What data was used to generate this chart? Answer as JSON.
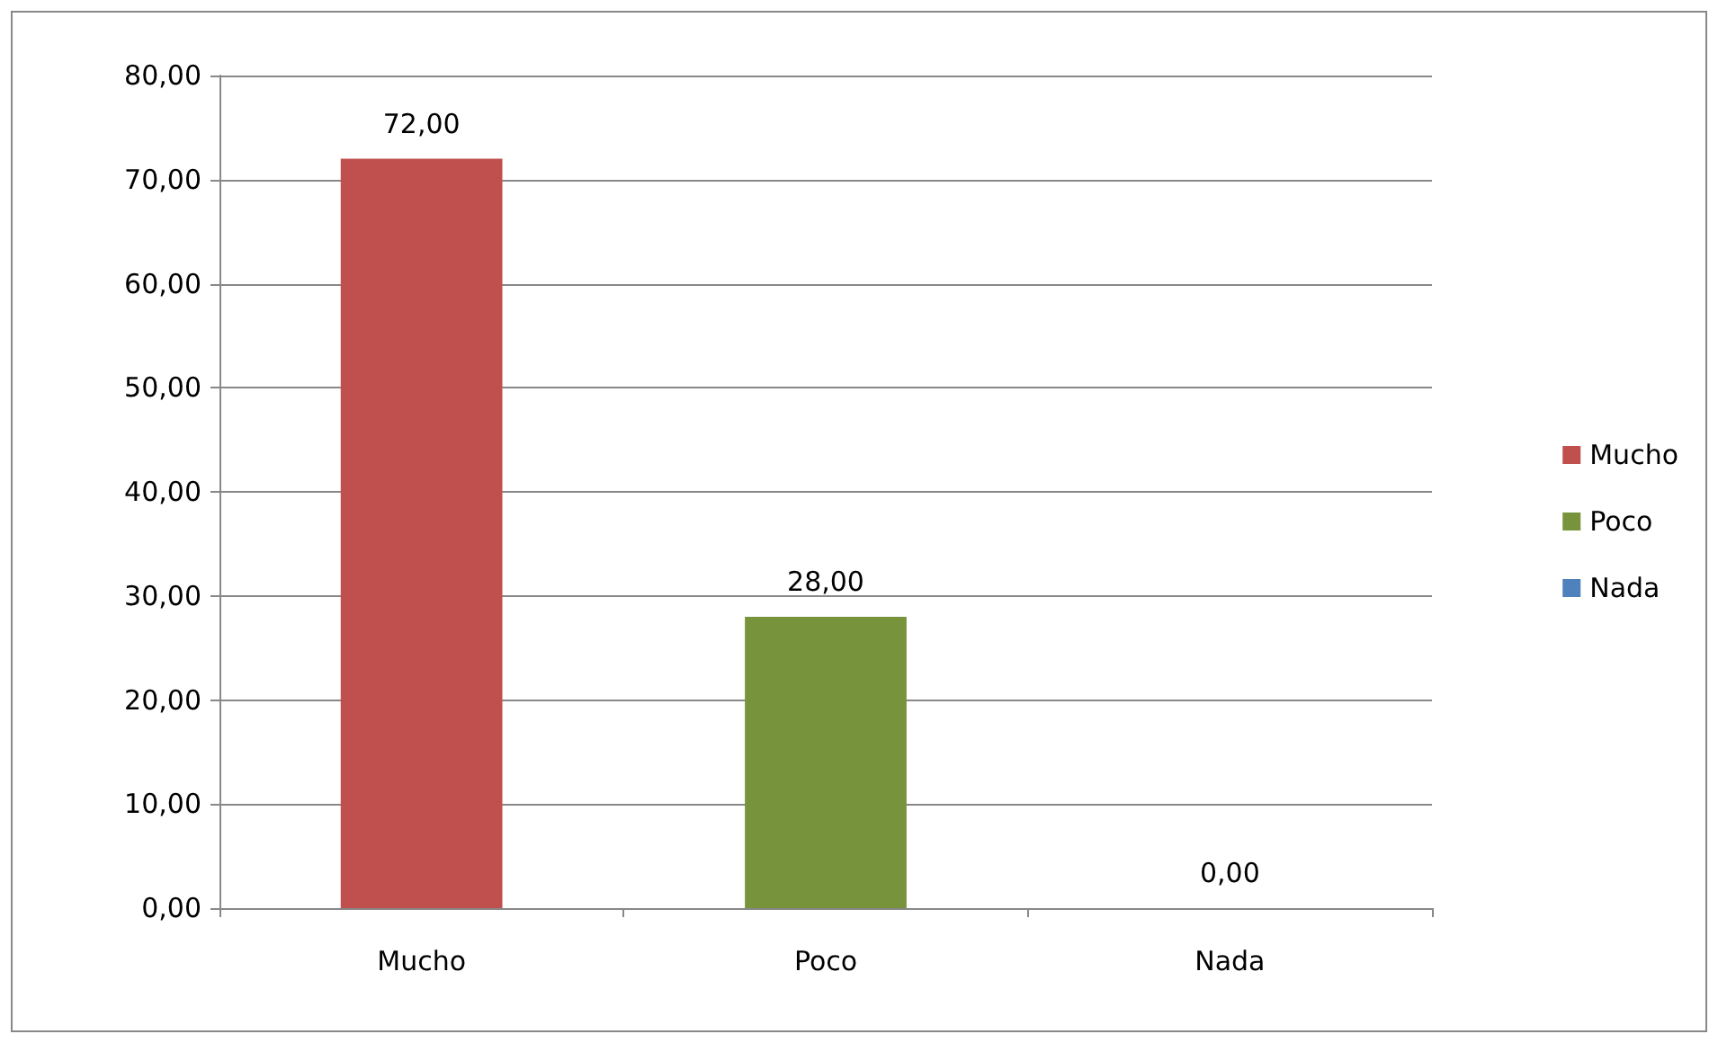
{
  "chart_data": {
    "type": "bar",
    "categories": [
      "Mucho",
      "Poco",
      "Nada"
    ],
    "stacked": true,
    "series": [
      {
        "name": "Mucho",
        "color": "#c0504d",
        "values": [
          72,
          null,
          null
        ],
        "value_labels": [
          "72,00",
          null,
          null
        ]
      },
      {
        "name": "Poco",
        "color": "#77933c",
        "values": [
          null,
          28,
          null
        ],
        "value_labels": [
          null,
          "28,00",
          null
        ]
      },
      {
        "name": "Nada",
        "color": "#4f81bd",
        "values": [
          null,
          null,
          0
        ],
        "value_labels": [
          null,
          null,
          "0,00"
        ]
      }
    ],
    "ylim": [
      0,
      80
    ],
    "yticks": [
      {
        "value": 0,
        "label": "0,00"
      },
      {
        "value": 10,
        "label": "10,00"
      },
      {
        "value": 20,
        "label": "20,00"
      },
      {
        "value": 30,
        "label": "30,00"
      },
      {
        "value": 40,
        "label": "40,00"
      },
      {
        "value": 50,
        "label": "50,00"
      },
      {
        "value": 60,
        "label": "60,00"
      },
      {
        "value": 70,
        "label": "70,00"
      },
      {
        "value": 80,
        "label": "80,00"
      }
    ],
    "grid": "y",
    "legend": "right"
  }
}
